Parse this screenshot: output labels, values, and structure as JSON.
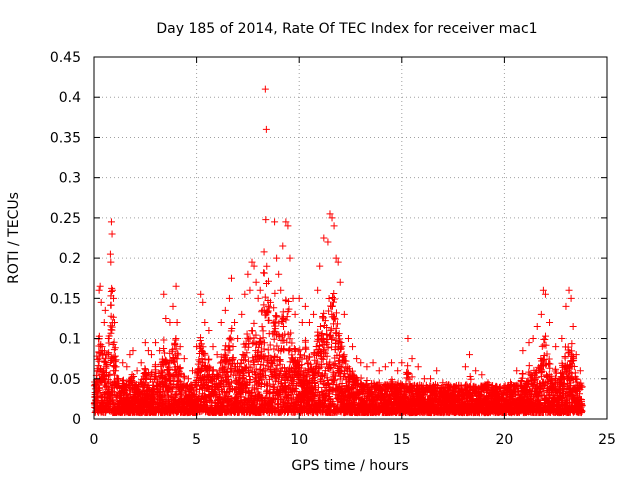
{
  "chart_data": {
    "type": "scatter",
    "title": "Day 185 of 2014, Rate Of TEC Index for receiver mac1",
    "xlabel": "GPS time / hours",
    "ylabel": "ROTI / TECUs",
    "xlim": [
      0,
      25
    ],
    "ylim": [
      0,
      0.45
    ],
    "xticks": [
      "0",
      "5",
      "10",
      "15",
      "20",
      "25"
    ],
    "yticks": [
      "0",
      "0.05",
      "0.1",
      "0.15",
      "0.2",
      "0.25",
      "0.3",
      "0.35",
      "0.4",
      "0.45"
    ],
    "grid": true,
    "marker": "+",
    "color": "#ff0000",
    "series": [
      {
        "name": "ROTI",
        "points": [
          [
            0.05,
            0.02
          ],
          [
            0.12,
            0.04
          ],
          [
            0.2,
            0.06
          ],
          [
            0.25,
            0.16
          ],
          [
            0.3,
            0.165
          ],
          [
            0.35,
            0.145
          ],
          [
            0.4,
            0.09
          ],
          [
            0.45,
            0.05
          ],
          [
            0.5,
            0.12
          ],
          [
            0.55,
            0.135
          ],
          [
            0.6,
            0.08
          ],
          [
            0.7,
            0.1
          ],
          [
            0.8,
            0.205
          ],
          [
            0.82,
            0.195
          ],
          [
            0.85,
            0.245
          ],
          [
            0.88,
            0.23
          ],
          [
            0.9,
            0.16
          ],
          [
            0.95,
            0.15
          ],
          [
            1.0,
            0.12
          ],
          [
            1.05,
            0.06
          ],
          [
            1.2,
            0.05
          ],
          [
            1.4,
            0.07
          ],
          [
            1.6,
            0.065
          ],
          [
            1.75,
            0.08
          ],
          [
            1.9,
            0.085
          ],
          [
            2.1,
            0.06
          ],
          [
            2.3,
            0.07
          ],
          [
            2.5,
            0.095
          ],
          [
            2.65,
            0.085
          ],
          [
            2.8,
            0.08
          ],
          [
            3.0,
            0.095
          ],
          [
            3.2,
            0.085
          ],
          [
            3.4,
            0.155
          ],
          [
            3.5,
            0.125
          ],
          [
            3.7,
            0.12
          ],
          [
            3.85,
            0.14
          ],
          [
            4.0,
            0.165
          ],
          [
            4.05,
            0.12
          ],
          [
            4.2,
            0.09
          ],
          [
            4.4,
            0.075
          ],
          [
            4.6,
            0.05
          ],
          [
            4.8,
            0.06
          ],
          [
            5.0,
            0.09
          ],
          [
            5.2,
            0.155
          ],
          [
            5.3,
            0.145
          ],
          [
            5.4,
            0.12
          ],
          [
            5.6,
            0.11
          ],
          [
            5.8,
            0.09
          ],
          [
            6.0,
            0.08
          ],
          [
            6.2,
            0.12
          ],
          [
            6.4,
            0.135
          ],
          [
            6.6,
            0.15
          ],
          [
            6.7,
            0.175
          ],
          [
            6.85,
            0.12
          ],
          [
            7.0,
            0.1
          ],
          [
            7.2,
            0.13
          ],
          [
            7.35,
            0.155
          ],
          [
            7.5,
            0.18
          ],
          [
            7.6,
            0.16
          ],
          [
            7.7,
            0.195
          ],
          [
            7.8,
            0.19
          ],
          [
            7.9,
            0.17
          ],
          [
            8.0,
            0.15
          ],
          [
            8.1,
            0.16
          ],
          [
            8.2,
            0.135
          ],
          [
            8.35,
            0.41
          ],
          [
            8.4,
            0.36
          ],
          [
            8.5,
            0.14
          ],
          [
            8.6,
            0.145
          ],
          [
            8.8,
            0.245
          ],
          [
            8.9,
            0.2
          ],
          [
            9.0,
            0.18
          ],
          [
            9.1,
            0.16
          ],
          [
            9.2,
            0.215
          ],
          [
            9.35,
            0.245
          ],
          [
            9.45,
            0.24
          ],
          [
            9.55,
            0.2
          ],
          [
            9.7,
            0.15
          ],
          [
            9.8,
            0.13
          ],
          [
            10.0,
            0.15
          ],
          [
            10.15,
            0.12
          ],
          [
            10.3,
            0.14
          ],
          [
            10.5,
            0.12
          ],
          [
            10.7,
            0.13
          ],
          [
            10.9,
            0.16
          ],
          [
            11.0,
            0.19
          ],
          [
            11.2,
            0.225
          ],
          [
            11.4,
            0.22
          ],
          [
            11.5,
            0.255
          ],
          [
            11.6,
            0.25
          ],
          [
            11.7,
            0.24
          ],
          [
            11.8,
            0.2
          ],
          [
            11.9,
            0.195
          ],
          [
            12.0,
            0.17
          ],
          [
            12.2,
            0.13
          ],
          [
            12.4,
            0.1
          ],
          [
            12.6,
            0.09
          ],
          [
            12.8,
            0.075
          ],
          [
            13.0,
            0.07
          ],
          [
            13.3,
            0.065
          ],
          [
            13.6,
            0.07
          ],
          [
            13.9,
            0.06
          ],
          [
            14.2,
            0.065
          ],
          [
            14.5,
            0.07
          ],
          [
            14.8,
            0.06
          ],
          [
            15.0,
            0.07
          ],
          [
            15.3,
            0.1
          ],
          [
            15.5,
            0.075
          ],
          [
            15.8,
            0.065
          ],
          [
            16.1,
            0.05
          ],
          [
            16.4,
            0.05
          ],
          [
            16.7,
            0.06
          ],
          [
            17.0,
            0.045
          ],
          [
            17.3,
            0.035
          ],
          [
            17.6,
            0.03
          ],
          [
            17.9,
            0.04
          ],
          [
            18.1,
            0.065
          ],
          [
            18.3,
            0.08
          ],
          [
            18.6,
            0.06
          ],
          [
            18.9,
            0.055
          ],
          [
            19.2,
            0.045
          ],
          [
            19.5,
            0.03
          ],
          [
            19.8,
            0.04
          ],
          [
            20.0,
            0.035
          ],
          [
            20.3,
            0.045
          ],
          [
            20.6,
            0.06
          ],
          [
            20.9,
            0.085
          ],
          [
            21.2,
            0.095
          ],
          [
            21.4,
            0.1
          ],
          [
            21.6,
            0.115
          ],
          [
            21.8,
            0.13
          ],
          [
            21.9,
            0.16
          ],
          [
            22.0,
            0.155
          ],
          [
            22.2,
            0.12
          ],
          [
            22.5,
            0.09
          ],
          [
            22.8,
            0.1
          ],
          [
            23.0,
            0.14
          ],
          [
            23.15,
            0.16
          ],
          [
            23.25,
            0.15
          ],
          [
            23.35,
            0.115
          ],
          [
            23.5,
            0.08
          ],
          [
            23.7,
            0.06
          ]
        ]
      }
    ],
    "baseline_band": {
      "note": "dense cluster of points between roughly 0 and 0.05 across 0 to 23.8 hours"
    }
  }
}
